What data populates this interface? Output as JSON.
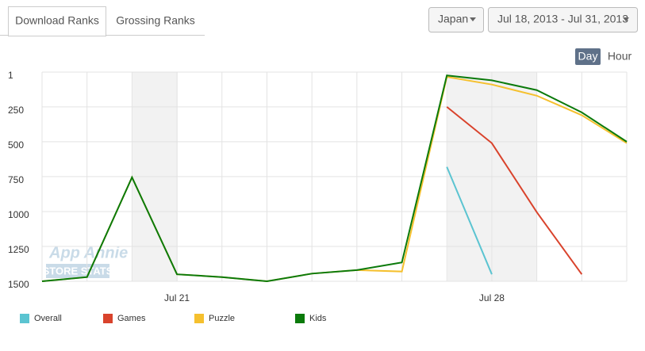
{
  "tabs": [
    "Download Ranks",
    "Grossing Ranks"
  ],
  "filters": {
    "country": "Japan",
    "date_range": "Jul 18, 2013 - Jul 31, 2013"
  },
  "granularity": [
    "Day",
    "Hour"
  ],
  "watermark": [
    "App Annie",
    "STORE STATS"
  ],
  "chart_data": {
    "type": "line",
    "categories": [
      null,
      null,
      null,
      "Jul 21",
      null,
      null,
      null,
      null,
      null,
      null,
      "Jul 28",
      null,
      null,
      null
    ],
    "ylim": [
      1500,
      1
    ],
    "yticks": [
      1,
      250,
      500,
      750,
      1000,
      1250,
      1500
    ],
    "grid": true,
    "series": [
      {
        "name": "Overall",
        "color": "#5bc4d1",
        "values": [
          null,
          null,
          null,
          null,
          null,
          null,
          null,
          null,
          null,
          680,
          1450,
          null,
          null,
          null
        ]
      },
      {
        "name": "Games",
        "color": "#d9432c",
        "values": [
          null,
          null,
          null,
          null,
          null,
          null,
          null,
          null,
          null,
          250,
          510,
          1005,
          1450,
          null
        ]
      },
      {
        "name": "Puzzle",
        "color": "#f5c02e",
        "values": [
          1500,
          1470,
          755,
          1450,
          1470,
          1500,
          1445,
          1420,
          1430,
          35,
          90,
          170,
          310,
          510
        ]
      },
      {
        "name": "Kids",
        "color": "#0b7a0b",
        "values": [
          1500,
          1470,
          755,
          1450,
          1470,
          1500,
          1445,
          1420,
          1365,
          25,
          60,
          130,
          290,
          500
        ]
      }
    ]
  }
}
